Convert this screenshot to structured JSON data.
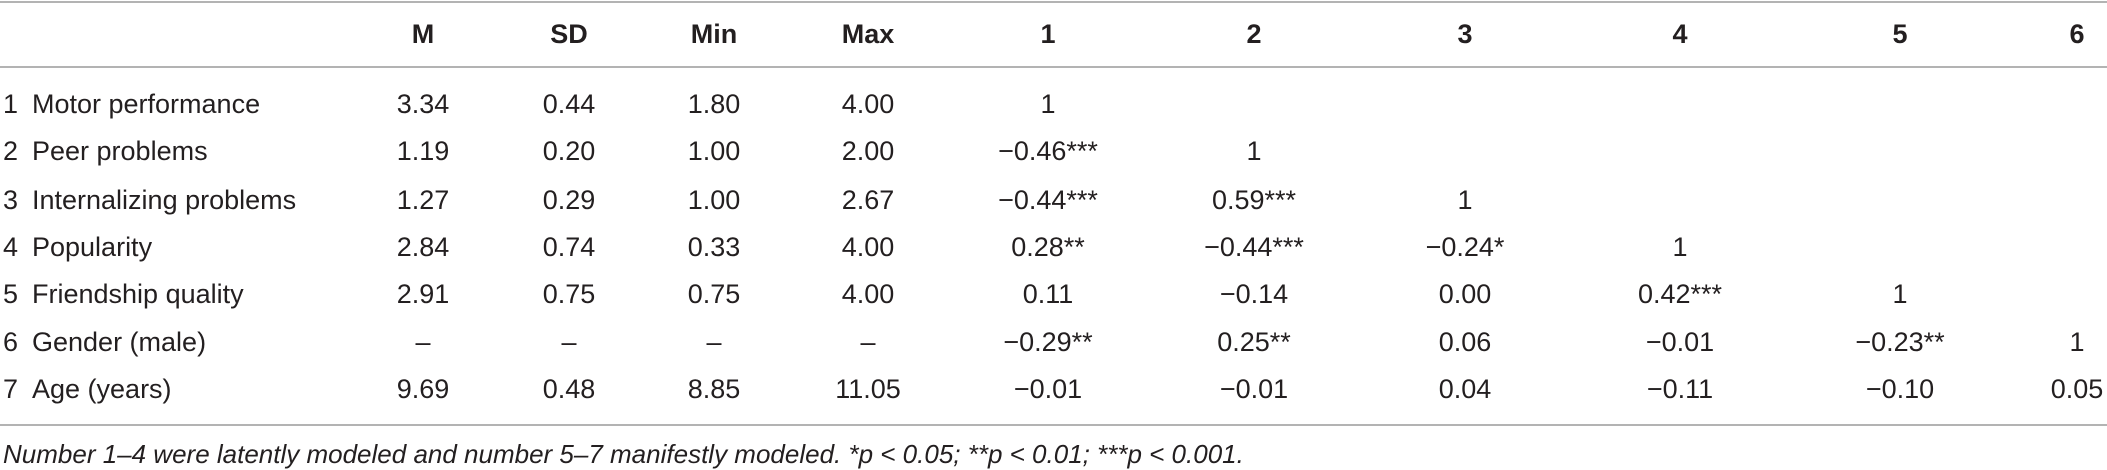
{
  "table": {
    "columns": [
      "M",
      "SD",
      "Min",
      "Max",
      "1",
      "2",
      "3",
      "4",
      "5",
      "6"
    ],
    "rows": [
      {
        "num": "1",
        "label": "Motor performance",
        "cells": [
          "3.34",
          "0.44",
          "1.80",
          "4.00",
          "1"
        ]
      },
      {
        "num": "2",
        "label": "Peer problems",
        "cells": [
          "1.19",
          "0.20",
          "1.00",
          "2.00",
          "−0.46***",
          "1"
        ]
      },
      {
        "num": "3",
        "label": "Internalizing problems",
        "cells": [
          "1.27",
          "0.29",
          "1.00",
          "2.67",
          "−0.44***",
          "0.59***",
          "1"
        ]
      },
      {
        "num": "4",
        "label": "Popularity",
        "cells": [
          "2.84",
          "0.74",
          "0.33",
          "4.00",
          "0.28**",
          "−0.44***",
          "−0.24*",
          "1"
        ]
      },
      {
        "num": "5",
        "label": "Friendship quality",
        "cells": [
          "2.91",
          "0.75",
          "0.75",
          "4.00",
          "0.11",
          "−0.14",
          "0.00",
          "0.42***",
          "1"
        ]
      },
      {
        "num": "6",
        "label": "Gender (male)",
        "cells": [
          "–",
          "–",
          "–",
          "–",
          "−0.29**",
          "0.25**",
          "0.06",
          "−0.01",
          "−0.23**",
          "1"
        ]
      },
      {
        "num": "7",
        "label": "Age (years)",
        "cells": [
          "9.69",
          "0.48",
          "8.85",
          "11.05",
          "−0.01",
          "−0.01",
          "0.04",
          "−0.11",
          "−0.10",
          "0.05"
        ]
      }
    ],
    "footnote": "Number 1–4 were latently modeled and number 5–7 manifestly modeled. *p < 0.05; **p < 0.01; ***p < 0.001."
  }
}
